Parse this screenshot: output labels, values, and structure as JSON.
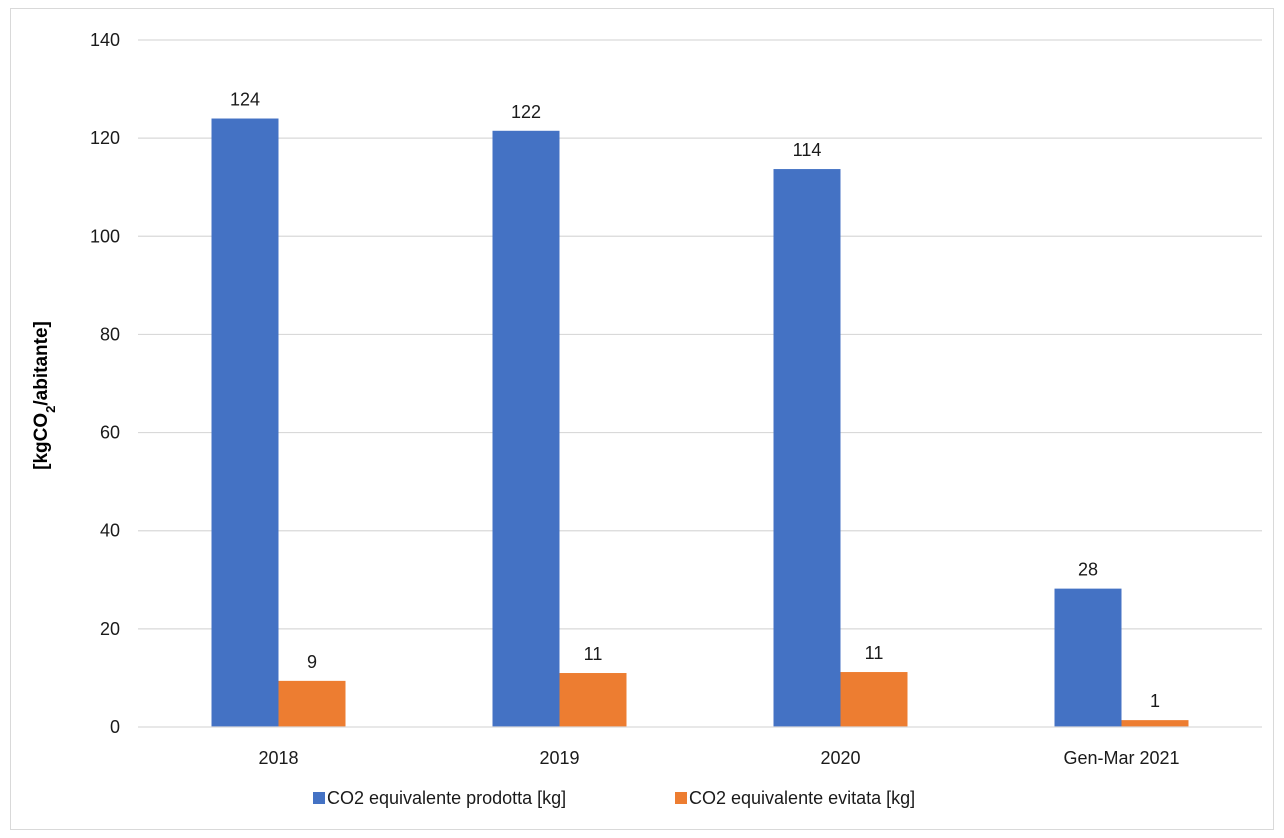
{
  "chart_data": {
    "type": "bar",
    "categories": [
      "2018",
      "2019",
      "2020",
      "Gen-Mar 2021"
    ],
    "series": [
      {
        "name": "CO2 equivalente prodotta [kg]",
        "values": [
          124,
          121.5,
          113.7,
          28.2
        ],
        "labels": [
          "124",
          "122",
          "114",
          "28"
        ],
        "color": "#4472c4"
      },
      {
        "name": "CO2 equivalente evitata [kg]",
        "values": [
          9.4,
          11.0,
          11.2,
          1.4
        ],
        "labels": [
          "9",
          "11",
          "11",
          "1"
        ],
        "color": "#ed7d31"
      }
    ],
    "ylabel_main": "[kgCO",
    "ylabel_sub": "2",
    "ylabel_end": "/abitante]",
    "ylim": [
      0,
      140
    ],
    "yticks": [
      "0",
      "20",
      "40",
      "60",
      "80",
      "100",
      "120",
      "140"
    ],
    "ytick_values": [
      0,
      20,
      40,
      60,
      80,
      100,
      120,
      140
    ],
    "grid": true,
    "legend_position": "bottom",
    "gridline_color": "#d9d9d9"
  }
}
